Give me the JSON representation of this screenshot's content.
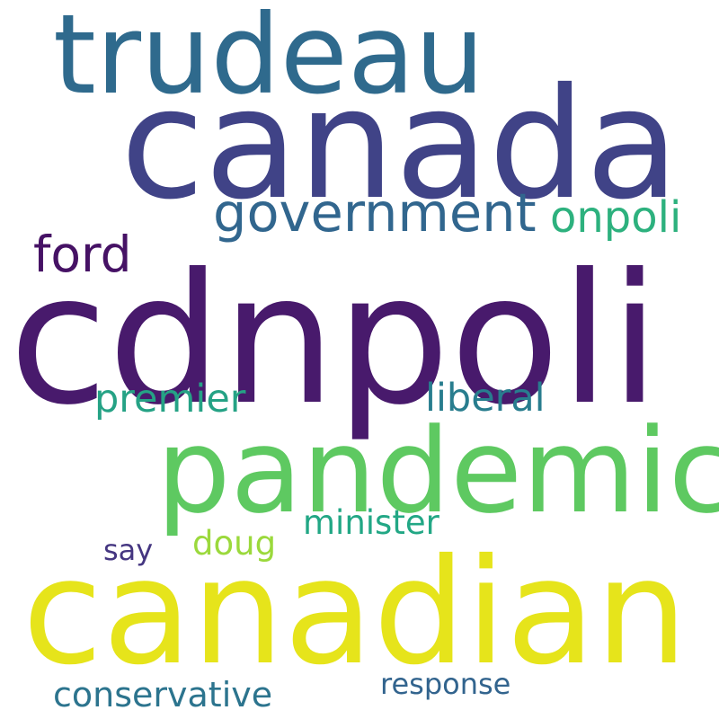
{
  "words": [
    {
      "text": "cdnpoli",
      "color": "#481a6c"
    },
    {
      "text": "canada",
      "color": "#404387"
    },
    {
      "text": "canadian",
      "color": "#e6e41b"
    },
    {
      "text": "pandemic",
      "color": "#5ec961"
    },
    {
      "text": "trudeau",
      "color": "#2f6a8d"
    },
    {
      "text": "government",
      "color": "#31668e"
    },
    {
      "text": "onpoli",
      "color": "#2db17e"
    },
    {
      "text": "ford",
      "color": "#461265"
    },
    {
      "text": "premier",
      "color": "#25a285"
    },
    {
      "text": "liberal",
      "color": "#287d8e"
    },
    {
      "text": "minister",
      "color": "#22a785"
    },
    {
      "text": "doug",
      "color": "#9bd93c"
    },
    {
      "text": "say",
      "color": "#453681"
    },
    {
      "text": "conservative",
      "color": "#2c748e"
    },
    {
      "text": "response",
      "color": "#32648e"
    }
  ]
}
